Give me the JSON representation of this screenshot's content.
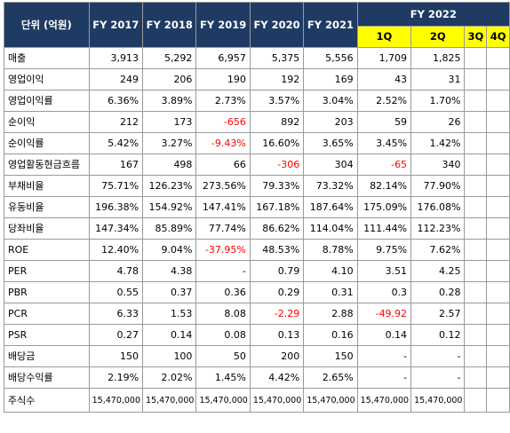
{
  "header": {
    "unit_label": "단위 (억원)",
    "years": [
      "FY 2017",
      "FY 2018",
      "FY 2019",
      "FY 2020",
      "FY 2021"
    ],
    "group_label": "FY 2022",
    "quarters": [
      "1Q",
      "2Q",
      "3Q",
      "4Q"
    ]
  },
  "rows": [
    {
      "label": "매출",
      "values": [
        "3,913",
        "5,292",
        "6,957",
        "5,375",
        "5,556",
        "1,709",
        "1,825",
        "",
        ""
      ],
      "neg": []
    },
    {
      "label": "영업이익",
      "values": [
        "249",
        "206",
        "190",
        "192",
        "169",
        "43",
        "31",
        "",
        ""
      ],
      "neg": []
    },
    {
      "label": "영업이익률",
      "values": [
        "6.36%",
        "3.89%",
        "2.73%",
        "3.57%",
        "3.04%",
        "2.52%",
        "1.70%",
        "",
        ""
      ],
      "neg": []
    },
    {
      "label": "순이익",
      "values": [
        "212",
        "173",
        "-656",
        "892",
        "203",
        "59",
        "26",
        "",
        ""
      ],
      "neg": [
        2
      ]
    },
    {
      "label": "순이익률",
      "values": [
        "5.42%",
        "3.27%",
        "-9.43%",
        "16.60%",
        "3.65%",
        "3.45%",
        "1.42%",
        "",
        ""
      ],
      "neg": [
        2
      ]
    },
    {
      "label": "영업활동현금흐름",
      "values": [
        "167",
        "498",
        "66",
        "-306",
        "304",
        "-65",
        "340",
        "",
        ""
      ],
      "neg": [
        3,
        5
      ]
    },
    {
      "label": "부채비율",
      "values": [
        "75.71%",
        "126.23%",
        "273.56%",
        "79.33%",
        "73.32%",
        "82.14%",
        "77.90%",
        "",
        ""
      ],
      "neg": []
    },
    {
      "label": "유동비율",
      "values": [
        "196.38%",
        "154.92%",
        "147.41%",
        "167.18%",
        "187.64%",
        "175.09%",
        "176.08%",
        "",
        ""
      ],
      "neg": []
    },
    {
      "label": "당좌비율",
      "values": [
        "147.34%",
        "85.89%",
        "77.74%",
        "86.62%",
        "114.04%",
        "111.44%",
        "112.23%",
        "",
        ""
      ],
      "neg": []
    },
    {
      "label": "ROE",
      "values": [
        "12.40%",
        "9.04%",
        "-37.95%",
        "48.53%",
        "8.78%",
        "9.75%",
        "7.62%",
        "",
        ""
      ],
      "neg": [
        2
      ]
    },
    {
      "label": "PER",
      "values": [
        "4.78",
        "4.38",
        "-",
        "0.79",
        "4.10",
        "3.51",
        "4.25",
        "",
        ""
      ],
      "neg": []
    },
    {
      "label": "PBR",
      "values": [
        "0.55",
        "0.37",
        "0.36",
        "0.29",
        "0.31",
        "0.3",
        "0.28",
        "",
        ""
      ],
      "neg": []
    },
    {
      "label": "PCR",
      "values": [
        "6.33",
        "1.53",
        "8.08",
        "-2.29",
        "2.88",
        "-49.92",
        "2.57",
        "",
        ""
      ],
      "neg": [
        3,
        5
      ]
    },
    {
      "label": "PSR",
      "values": [
        "0.27",
        "0.14",
        "0.08",
        "0.13",
        "0.16",
        "0.14",
        "0.12",
        "",
        ""
      ],
      "neg": []
    },
    {
      "label": "배당금",
      "values": [
        "150",
        "100",
        "50",
        "200",
        "150",
        "-",
        "-",
        "",
        ""
      ],
      "neg": []
    },
    {
      "label": "배당수익률",
      "values": [
        "2.19%",
        "2.02%",
        "1.45%",
        "4.42%",
        "2.65%",
        "-",
        "-",
        "",
        ""
      ],
      "neg": []
    },
    {
      "label": "주식수",
      "values": [
        "15,470,000",
        "15,470,000",
        "15,470,000",
        "15,470,000",
        "15,470,000",
        "15,470,000",
        "15,470,000",
        "",
        ""
      ],
      "neg": []
    }
  ]
}
